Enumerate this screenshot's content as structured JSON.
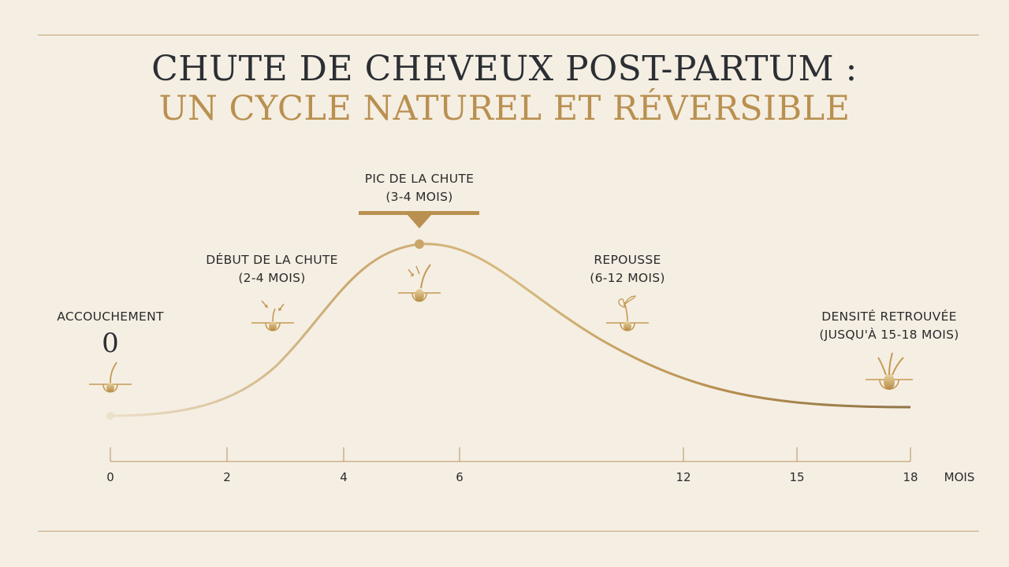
{
  "title": {
    "line1": "CHUTE DE CHEVEUX POST-PARTUM :",
    "line2": "UN CYCLE NATUREL ET RÉVERSIBLE"
  },
  "phases": {
    "accouchement": {
      "label": "ACCOUCHEMENT",
      "value": "0"
    },
    "debut": {
      "line1": "DÉBUT DE LA CHUTE",
      "line2": "(2-4 MOIS)"
    },
    "pic": {
      "line1": "PIC DE LA CHUTE",
      "line2": "(3-4 MOIS)"
    },
    "repousse": {
      "line1": "REPOUSSE",
      "line2": "(6-12 MOIS)"
    },
    "densite": {
      "line1": "DENSITÉ RETROUVÉE",
      "line2": "(JUSQU'À 15-18 MOIS)"
    }
  },
  "axis": {
    "ticks": [
      "0",
      "2",
      "4",
      "6",
      "12",
      "15",
      "18"
    ],
    "unit": "MOIS"
  },
  "colors": {
    "background": "#f5eee3",
    "gold": "#c49a55",
    "gold_light": "#e8d3a2",
    "dark": "#2b2f33"
  },
  "icons": [
    "hair-follicle-icon",
    "falling-hair-icon",
    "sprout-hair-icon",
    "thick-hair-icon"
  ]
}
